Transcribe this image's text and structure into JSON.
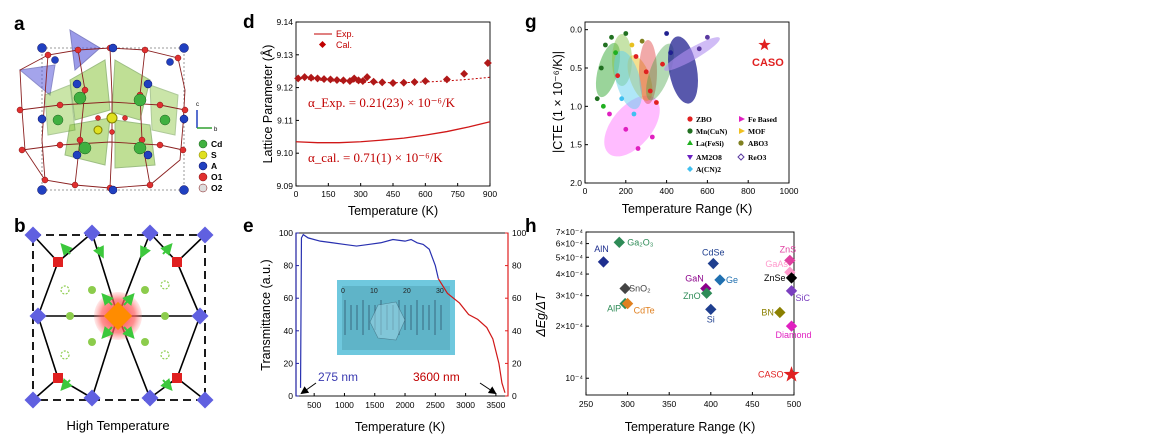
{
  "figure": {
    "panel_labels": [
      "a",
      "b",
      "d",
      "e",
      "g",
      "h"
    ],
    "panel_a": {
      "legend": [
        "Cd",
        "S",
        "A",
        "O1",
        "O2"
      ],
      "axis_labels": [
        "c",
        "b"
      ]
    },
    "panel_b": {
      "caption": "High Temperature"
    },
    "colors": {
      "red": "#c00000",
      "blue": "#1f2fa8",
      "green_poly": "#8cc63f",
      "purple": "#6a5acd",
      "star": "#e02020"
    }
  },
  "chart_data": [
    {
      "id": "d",
      "type": "scatter",
      "xlabel": "Temperature (K)",
      "ylabel": "Lattice Parameter (Å)",
      "xlim": [
        0,
        900
      ],
      "ylim": [
        9.09,
        9.14
      ],
      "xticks": [
        "0",
        "150",
        "300",
        "450",
        "600",
        "750",
        "900"
      ],
      "yticks": [
        "9.09",
        "9.10",
        "9.11",
        "9.12",
        "9.13",
        "9.14"
      ],
      "legend": [
        "Exp.",
        "Cal."
      ],
      "series": [
        {
          "name": "Cal.",
          "x": [
            10,
            40,
            70,
            100,
            130,
            160,
            190,
            220,
            250,
            270,
            290,
            310,
            330,
            360,
            400,
            450,
            500,
            550,
            600,
            700,
            780,
            890
          ],
          "y": [
            9.1228,
            9.1232,
            9.123,
            9.1228,
            9.1226,
            9.1225,
            9.1223,
            9.1222,
            9.122,
            9.1228,
            9.1222,
            9.122,
            9.1232,
            9.1218,
            9.1216,
            9.1214,
            9.1215,
            9.1217,
            9.122,
            9.1225,
            9.1242,
            9.1275
          ]
        },
        {
          "name": "Exp.",
          "x": [
            0,
            100,
            200,
            300,
            400,
            500,
            600,
            700,
            800,
            900
          ],
          "y": [
            9.1035,
            9.1032,
            9.1032,
            9.1035,
            9.104,
            9.1046,
            9.1055,
            9.1066,
            9.108,
            9.1096
          ]
        }
      ],
      "annotations": [
        "α_Exp. = 0.21(23) × 10⁻⁶/K",
        "α_cal. = 0.71(1) × 10⁻⁶/K"
      ]
    },
    {
      "id": "e",
      "type": "line",
      "xlabel": "Temperature (K)",
      "ylabel": "Transmittance (a.u.)",
      "xlim": [
        200,
        3700
      ],
      "ylim": [
        0,
        100
      ],
      "xticks": [
        "500",
        "1000",
        "1500",
        "2000",
        "2500",
        "3000",
        "3500"
      ],
      "yticks": [
        "0",
        "20",
        "40",
        "60",
        "80",
        "100"
      ],
      "y2ticks": [
        "0",
        "20",
        "40",
        "60",
        "80",
        "100"
      ],
      "annotations": [
        "275 nm",
        "3600 nm"
      ],
      "inset_ruler_labels": [
        "0",
        "10",
        "20",
        "30"
      ],
      "series": [
        {
          "name": "blue",
          "x": [
            275,
            290,
            320,
            400,
            600,
            800,
            1000,
            1200,
            1400,
            1600,
            1800,
            2000,
            2100,
            2200,
            2300,
            2400,
            2500,
            2550
          ],
          "y": [
            5,
            97,
            99,
            97,
            95,
            94,
            93,
            92,
            93,
            94,
            96,
            95,
            96,
            94,
            93,
            90,
            80,
            72
          ]
        },
        {
          "name": "red",
          "x": [
            2550,
            2700,
            2900,
            3050,
            3200,
            3350,
            3450,
            3550,
            3600,
            3650
          ],
          "y": [
            72,
            63,
            57,
            50,
            47,
            42,
            35,
            20,
            8,
            2
          ]
        }
      ]
    },
    {
      "id": "g",
      "type": "scatter",
      "xlabel": "Temperature Range (K)",
      "ylabel": "|CTE (1 × 10⁻⁶/K)|",
      "xlim": [
        0,
        1000
      ],
      "ylim": [
        2.0,
        -0.1
      ],
      "xticks": [
        "0",
        "200",
        "400",
        "600",
        "800",
        "1000"
      ],
      "yticks": [
        "0.0",
        "0.5",
        "1.0",
        "1.5",
        "2.0"
      ],
      "highlight": {
        "label": "CASO",
        "x": 880,
        "y": 0.2
      },
      "legend": [
        "ZBO",
        "Mn(CuN)",
        "La(FeSi)",
        "AM2O8",
        "A(CN)2",
        "Fe Based",
        "MOF",
        "ABO3",
        "ReO3"
      ]
    },
    {
      "id": "h",
      "type": "scatter",
      "xlabel": "Temperature Range (K)",
      "ylabel": "ΔEg/ΔT",
      "xlim": [
        250,
        500
      ],
      "ylim": [
        0.0001,
        0.0007
      ],
      "xticks": [
        "250",
        "300",
        "350",
        "400",
        "450",
        "500"
      ],
      "yticks": [
        "7×10⁻⁴",
        "6×10⁻⁴",
        "5×10⁻⁴",
        "4×10⁻⁴",
        "3×10⁻⁴",
        "2×10⁻⁴",
        "10⁻⁴"
      ],
      "points": [
        {
          "label": "AlN",
          "x": 271,
          "y": 0.00047,
          "color": "#1f2f8f"
        },
        {
          "label": "Ga₂O₃",
          "x": 290,
          "y": 0.00061,
          "color": "#2e8b57"
        },
        {
          "label": "SnO₂",
          "x": 297,
          "y": 0.00033,
          "color": "#444444"
        },
        {
          "label": "AlP",
          "x": 297,
          "y": 0.00027,
          "color": "#2e8b57"
        },
        {
          "label": "CdTe",
          "x": 300,
          "y": 0.00027,
          "color": "#e08020"
        },
        {
          "label": "CdSe",
          "x": 403,
          "y": 0.00046,
          "color": "#1f3f8f"
        },
        {
          "label": "Ge",
          "x": 411,
          "y": 0.00037,
          "color": "#2070b0"
        },
        {
          "label": "GaN",
          "x": 394,
          "y": 0.00033,
          "color": "#8b008b"
        },
        {
          "label": "ZnO",
          "x": 395,
          "y": 0.00031,
          "color": "#2e8b57"
        },
        {
          "label": "Si",
          "x": 400,
          "y": 0.00025,
          "color": "#1f3f8f"
        },
        {
          "label": "ZnS",
          "x": 495,
          "y": 0.00048,
          "color": "#e040a0"
        },
        {
          "label": "GaAs",
          "x": 495,
          "y": 0.00041,
          "color": "#ff99cc"
        },
        {
          "label": "ZnSe",
          "x": 497,
          "y": 0.00038,
          "color": "#000000"
        },
        {
          "label": "SiC",
          "x": 497,
          "y": 0.00032,
          "color": "#7b3fbf"
        },
        {
          "label": "BN",
          "x": 483,
          "y": 0.00024,
          "color": "#8b8000"
        },
        {
          "label": "Diamond",
          "x": 497,
          "y": 0.0002,
          "color": "#e020c0"
        },
        {
          "label": "CASO",
          "x": 497,
          "y": 0.000105,
          "color": "#e02020"
        }
      ]
    }
  ]
}
